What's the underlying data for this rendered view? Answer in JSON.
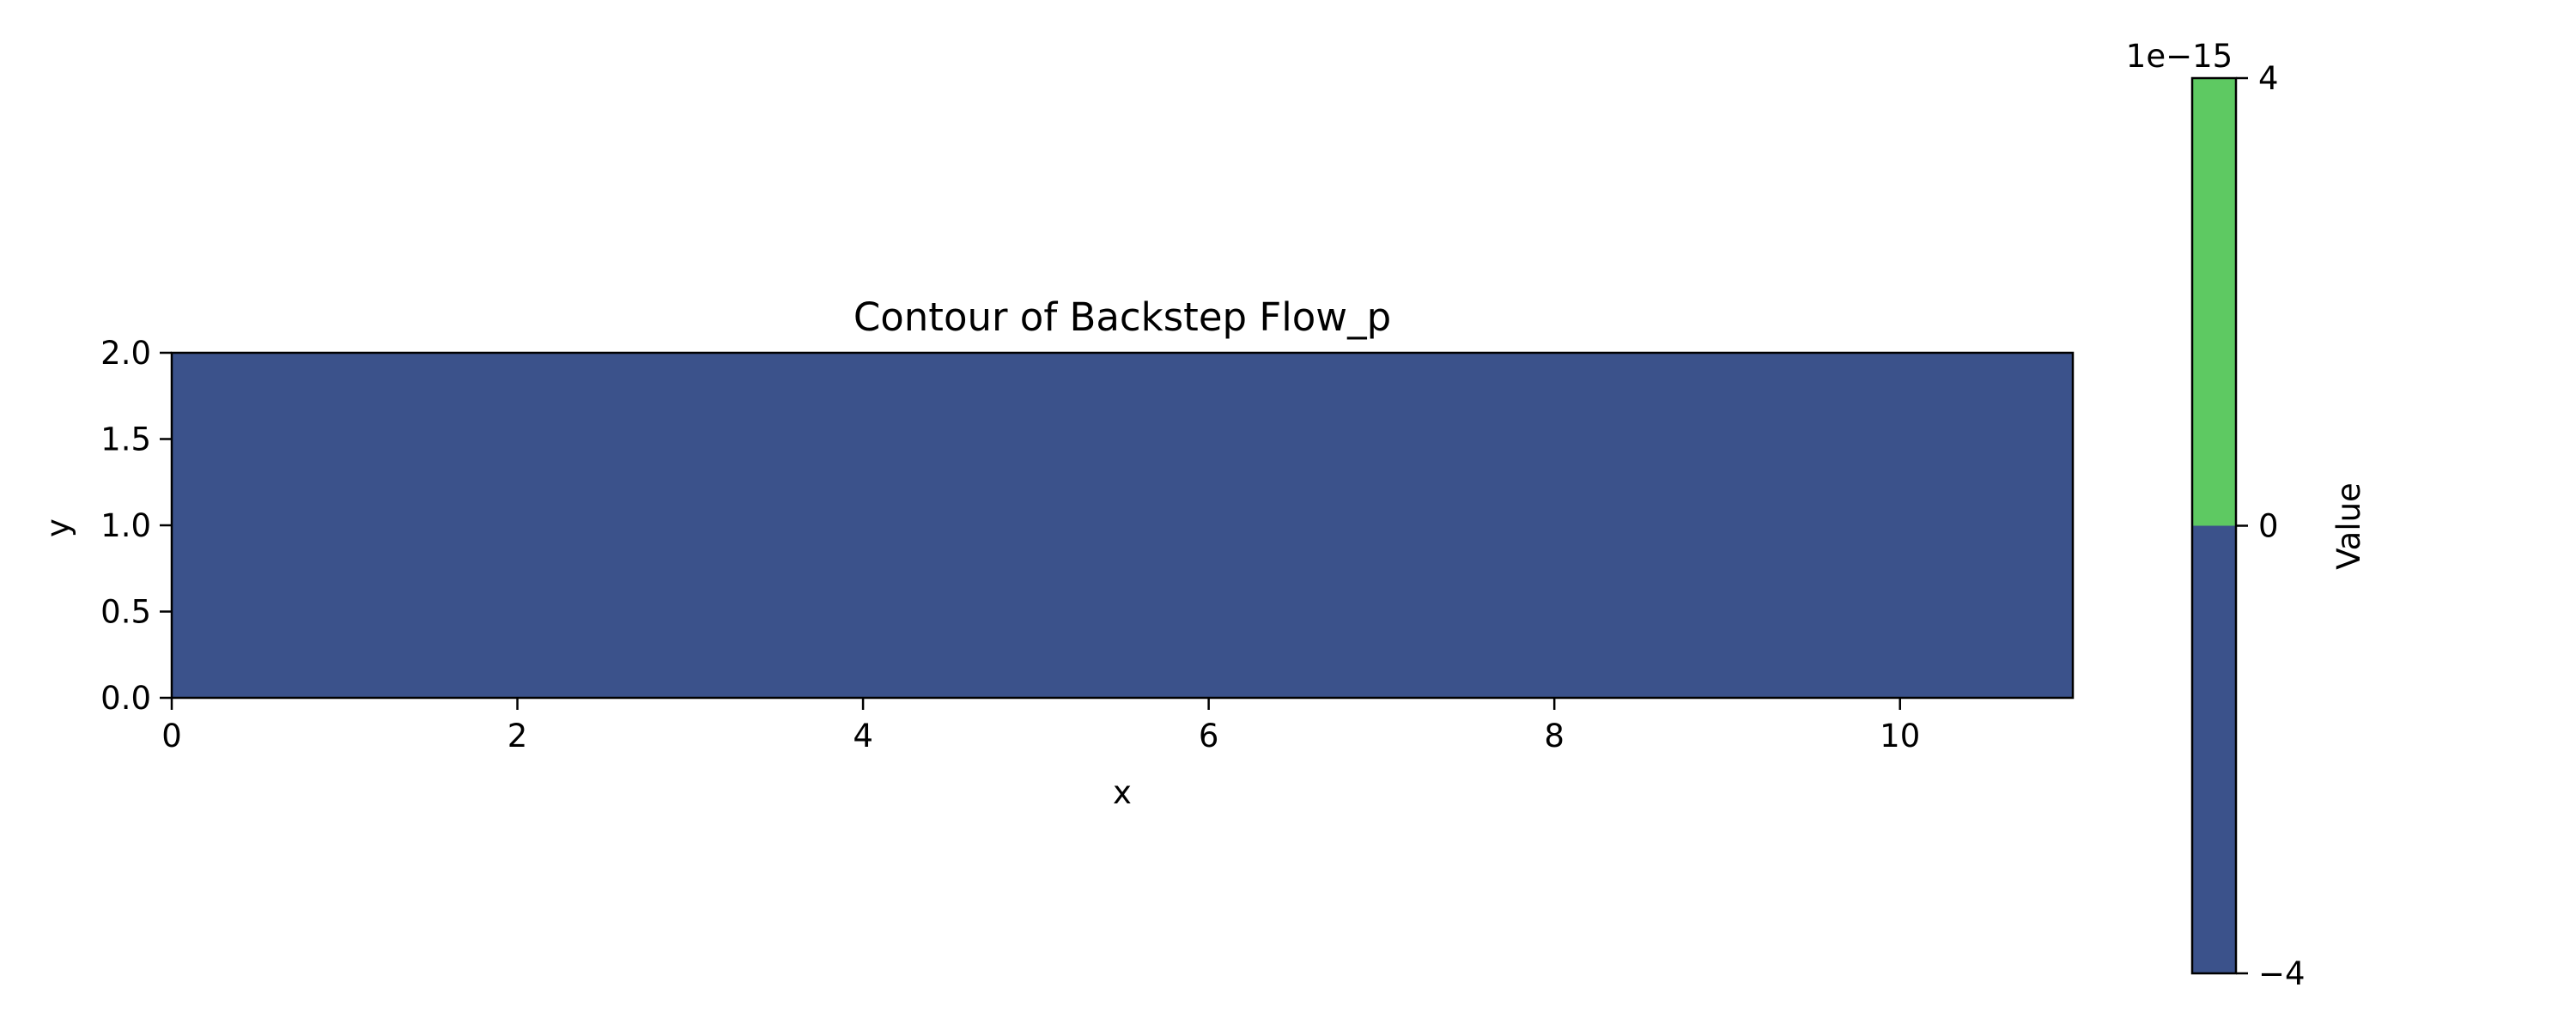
{
  "chart_data": {
    "type": "heatmap",
    "subtype": "filled-contour",
    "title": "Contour of Backstep Flow_p",
    "xlabel": "x",
    "ylabel": "y",
    "xlim": [
      0,
      11
    ],
    "ylim": [
      0,
      2
    ],
    "x_ticks": [
      0,
      2,
      4,
      6,
      8,
      10
    ],
    "x_tick_labels": [
      "0",
      "2",
      "4",
      "6",
      "8",
      "10"
    ],
    "y_ticks": [
      0,
      0.5,
      1,
      1.5,
      2
    ],
    "y_tick_labels": [
      "0.0",
      "0.5",
      "1.0",
      "1.5",
      "2.0"
    ],
    "field_value": -1e-16,
    "grid": false,
    "colorbar": {
      "label": "Value",
      "offset_text": "1e−15",
      "placement": "right",
      "range": [
        -4e-15,
        4e-15
      ],
      "levels": [
        {
          "min": -4e-15,
          "max": 0,
          "color": "#3b528b"
        },
        {
          "min": 0,
          "max": 4e-15,
          "color": "#5ec962"
        }
      ],
      "ticks": [
        -4e-15,
        0,
        4e-15
      ],
      "tick_labels": [
        "−4",
        "0",
        "4"
      ]
    }
  }
}
